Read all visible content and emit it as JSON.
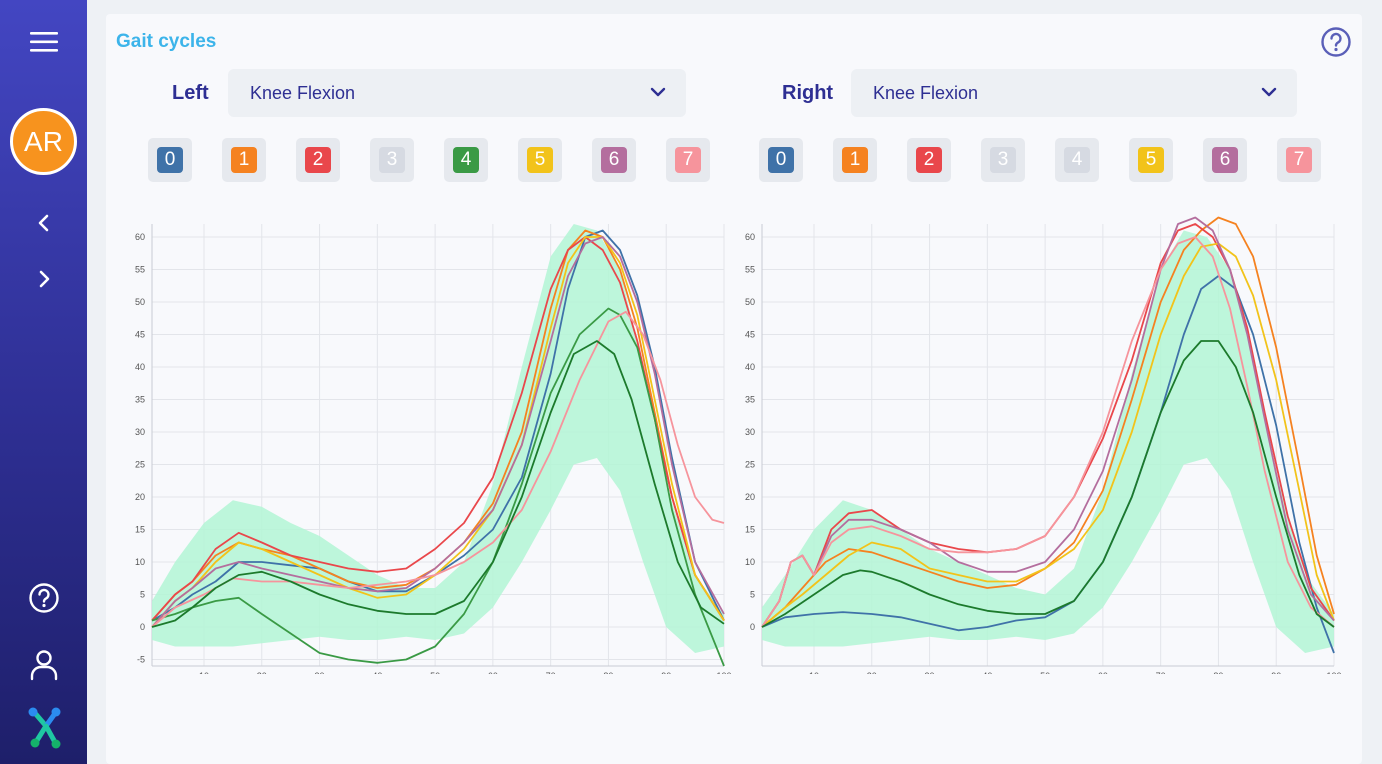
{
  "sidebar": {
    "menu_icon": "hamburger-menu-icon",
    "avatar_initials": "AR",
    "avatar_color": "#f7931e",
    "prev_icon": "chevron-left-icon",
    "next_icon": "chevron-right-icon",
    "help_icon": "help-circle-icon",
    "user_icon": "user-icon",
    "logo_icon": "app-logo-icon"
  },
  "main": {
    "title": "Gait cycles",
    "help_icon": "help-circle-icon",
    "left": {
      "label": "Left",
      "selected_metric": "Knee Flexion",
      "cycles": [
        {
          "label": "0",
          "color": "#3f72a8",
          "active": true
        },
        {
          "label": "1",
          "color": "#f58220",
          "active": true
        },
        {
          "label": "2",
          "color": "#e9474b",
          "active": true
        },
        {
          "label": "3",
          "color": "#d6dae2",
          "active": false
        },
        {
          "label": "4",
          "color": "#3a9a45",
          "active": true
        },
        {
          "label": "5",
          "color": "#f2c31a",
          "active": true
        },
        {
          "label": "6",
          "color": "#b46e9e",
          "active": true
        },
        {
          "label": "7",
          "color": "#f6949c",
          "active": true
        }
      ]
    },
    "right": {
      "label": "Right",
      "selected_metric": "Knee Flexion",
      "cycles": [
        {
          "label": "0",
          "color": "#3f72a8",
          "active": true
        },
        {
          "label": "1",
          "color": "#f58220",
          "active": true
        },
        {
          "label": "2",
          "color": "#e9474b",
          "active": true
        },
        {
          "label": "3",
          "color": "#d6dae2",
          "active": false
        },
        {
          "label": "4",
          "color": "#d6dae2",
          "active": false
        },
        {
          "label": "5",
          "color": "#f2c31a",
          "active": true
        },
        {
          "label": "6",
          "color": "#b46e9e",
          "active": true
        },
        {
          "label": "7",
          "color": "#f6949c",
          "active": true
        }
      ]
    }
  },
  "chart_data": [
    {
      "type": "line",
      "xlim": [
        1,
        100
      ],
      "ylim": [
        -6,
        62
      ],
      "xticks": [
        10,
        20,
        30,
        40,
        50,
        60,
        70,
        80,
        90,
        100
      ],
      "yticks": [
        -5,
        0,
        5,
        10,
        15,
        20,
        25,
        30,
        35,
        40,
        45,
        50,
        55,
        60
      ],
      "grid": true,
      "band": {
        "color": "#b3f6d5",
        "x": [
          1,
          5,
          10,
          15,
          20,
          25,
          30,
          35,
          40,
          45,
          50,
          55,
          60,
          65,
          70,
          74,
          78,
          82,
          86,
          90,
          95,
          100
        ],
        "upper": [
          4,
          10,
          16,
          19.5,
          18.5,
          16,
          14,
          11,
          8,
          6,
          6,
          10,
          22,
          40,
          57,
          62,
          61,
          55,
          40,
          22,
          8,
          2
        ],
        "lower": [
          -2,
          -3,
          -3,
          -3,
          -2.5,
          -2,
          -1.5,
          -2,
          -2,
          -1.5,
          -2,
          -1,
          3,
          10,
          18,
          25,
          26,
          21,
          10,
          0,
          -4,
          -3
        ]
      },
      "series": [
        {
          "color": "#3f72a8",
          "x": [
            1,
            5,
            8,
            12,
            16,
            20,
            25,
            30,
            35,
            40,
            45,
            50,
            55,
            60,
            65,
            70,
            73,
            76,
            79,
            82,
            85,
            88,
            91,
            95,
            100
          ],
          "y": [
            1,
            3,
            5,
            7,
            10,
            10,
            9.5,
            9,
            7,
            5.5,
            5.5,
            8,
            11,
            15,
            23,
            39,
            52,
            60,
            61,
            58,
            51,
            40,
            26,
            10,
            1
          ]
        },
        {
          "color": "#f58220",
          "x": [
            1,
            5,
            8,
            12,
            16,
            20,
            25,
            30,
            35,
            40,
            45,
            50,
            55,
            60,
            65,
            70,
            73,
            76,
            79,
            82,
            85,
            88,
            91,
            95,
            100
          ],
          "y": [
            1,
            5,
            7,
            11,
            13,
            12,
            11,
            9,
            7,
            6,
            6.5,
            9,
            13,
            19,
            30,
            49,
            58,
            61,
            60,
            55,
            46,
            33,
            20,
            8,
            1
          ]
        },
        {
          "color": "#e9474b",
          "x": [
            1,
            5,
            8,
            12,
            16,
            20,
            25,
            30,
            35,
            40,
            45,
            50,
            55,
            60,
            65,
            70,
            73,
            76,
            79,
            82,
            85,
            88,
            91,
            95,
            100
          ],
          "y": [
            1,
            5,
            7,
            12,
            14.5,
            13,
            11,
            10,
            9,
            8.5,
            9,
            12,
            16,
            23,
            36,
            52,
            58,
            60,
            58,
            53,
            44,
            32,
            20,
            8,
            1
          ]
        },
        {
          "color": "#3a9a45",
          "x": [
            1,
            5,
            8,
            12,
            16,
            20,
            25,
            30,
            35,
            40,
            45,
            50,
            55,
            60,
            65,
            70,
            75,
            80,
            82,
            85,
            88,
            91,
            95,
            100
          ],
          "y": [
            1,
            2,
            3,
            4,
            4.5,
            2,
            -1,
            -4,
            -5,
            -5.5,
            -5,
            -3,
            2,
            10,
            22,
            36,
            45,
            49,
            48,
            43,
            32,
            18,
            5,
            -6
          ]
        },
        {
          "color": "#f2c31a",
          "x": [
            1,
            5,
            8,
            12,
            16,
            20,
            25,
            30,
            35,
            40,
            45,
            50,
            55,
            60,
            65,
            70,
            73,
            76,
            79,
            82,
            85,
            88,
            91,
            95,
            100
          ],
          "y": [
            0,
            4,
            6,
            10,
            13,
            12,
            10,
            8,
            6,
            4.5,
            5,
            8,
            12,
            18,
            28,
            46,
            56,
            60,
            60,
            56,
            48,
            35,
            22,
            8,
            1
          ]
        },
        {
          "color": "#b46e9e",
          "x": [
            1,
            5,
            8,
            12,
            16,
            20,
            25,
            30,
            35,
            40,
            45,
            50,
            55,
            60,
            65,
            70,
            73,
            76,
            79,
            82,
            85,
            88,
            91,
            95,
            100
          ],
          "y": [
            0,
            4,
            6,
            9,
            10,
            9,
            8,
            7,
            6,
            5.5,
            6,
            9,
            13,
            18,
            28,
            44,
            54,
            59,
            60,
            57,
            50,
            39,
            25,
            10,
            2
          ]
        },
        {
          "color": "#f6949c",
          "x": [
            1,
            5,
            10,
            15,
            20,
            25,
            30,
            35,
            40,
            45,
            50,
            55,
            60,
            65,
            70,
            75,
            80,
            83,
            86,
            89,
            92,
            95,
            98,
            100
          ],
          "y": [
            0,
            3,
            5,
            7.5,
            7,
            7,
            6.5,
            6,
            6.5,
            7,
            8,
            10,
            13,
            18,
            27,
            38,
            47,
            48.5,
            45,
            38,
            28,
            20,
            16.5,
            16
          ]
        },
        {
          "color": "#1c7a2c",
          "x": [
            1,
            5,
            8,
            12,
            16,
            20,
            25,
            30,
            35,
            40,
            45,
            50,
            55,
            60,
            65,
            70,
            74,
            78,
            81,
            84,
            88,
            92,
            96,
            100
          ],
          "y": [
            0,
            1,
            3,
            6,
            8,
            8.5,
            7,
            5,
            3.5,
            2.5,
            2,
            2,
            4,
            10,
            20,
            33,
            42,
            44,
            42,
            35,
            22,
            10,
            3,
            0.5
          ]
        }
      ]
    },
    {
      "type": "line",
      "xlim": [
        1,
        100
      ],
      "ylim": [
        -6,
        62
      ],
      "xticks": [
        10,
        20,
        30,
        40,
        50,
        60,
        70,
        80,
        90,
        100
      ],
      "yticks": [
        0,
        5,
        10,
        15,
        20,
        25,
        30,
        35,
        40,
        45,
        50,
        55,
        60
      ],
      "grid": true,
      "band": {
        "color": "#b3f6d5",
        "x": [
          1,
          5,
          10,
          15,
          20,
          25,
          30,
          35,
          40,
          45,
          50,
          55,
          60,
          65,
          70,
          74,
          78,
          82,
          86,
          90,
          95,
          100
        ],
        "upper": [
          3,
          8,
          15,
          19.5,
          18,
          15,
          12,
          10,
          8,
          6,
          5,
          9,
          21,
          39,
          55,
          61,
          60,
          55,
          42,
          24,
          8,
          2
        ],
        "lower": [
          -2,
          -3,
          -3,
          -3,
          -2.5,
          -2,
          -1.5,
          -2,
          -2,
          -1.5,
          -2,
          -1,
          3,
          10,
          18,
          25,
          26,
          21,
          10,
          0,
          -4,
          -3
        ]
      },
      "series": [
        {
          "color": "#3f72a8",
          "x": [
            1,
            5,
            10,
            15,
            20,
            25,
            30,
            35,
            40,
            45,
            50,
            55,
            60,
            65,
            70,
            74,
            77,
            80,
            83,
            86,
            90,
            94,
            97,
            100
          ],
          "y": [
            0,
            1.5,
            2,
            2.3,
            2,
            1.5,
            0.5,
            -0.5,
            0,
            1,
            1.5,
            4,
            10,
            20,
            33,
            45,
            52,
            54,
            52,
            45,
            31,
            13,
            3,
            -4
          ]
        },
        {
          "color": "#f58220",
          "x": [
            1,
            5,
            8,
            12,
            16,
            20,
            25,
            30,
            35,
            40,
            45,
            50,
            55,
            60,
            65,
            70,
            74,
            77,
            80,
            83,
            86,
            90,
            94,
            97,
            100
          ],
          "y": [
            0,
            3,
            6,
            10,
            12,
            11.5,
            10,
            8.5,
            7,
            6,
            6.5,
            9,
            13,
            21,
            35,
            50,
            58,
            61,
            63,
            62,
            57,
            43,
            25,
            11,
            2
          ]
        },
        {
          "color": "#e9474b",
          "x": [
            1,
            4,
            6,
            8,
            10,
            13,
            16,
            20,
            25,
            30,
            35,
            40,
            45,
            50,
            55,
            60,
            65,
            70,
            73,
            76,
            79,
            82,
            85,
            88,
            92,
            96,
            100
          ],
          "y": [
            0,
            4,
            10,
            11,
            8,
            15,
            17.5,
            18,
            15,
            13,
            12,
            11.5,
            12,
            14,
            20,
            29,
            41,
            56,
            61,
            62,
            60,
            55,
            46,
            33,
            17,
            6,
            1
          ]
        },
        {
          "color": "#f2c31a",
          "x": [
            1,
            5,
            8,
            12,
            16,
            20,
            25,
            30,
            35,
            40,
            45,
            50,
            55,
            60,
            65,
            70,
            74,
            77,
            80,
            83,
            86,
            90,
            94,
            97,
            100
          ],
          "y": [
            0,
            3,
            5,
            8,
            11,
            13,
            12,
            9,
            8,
            7,
            7,
            9,
            12,
            18,
            30,
            45,
            54,
            58.5,
            59,
            57,
            51,
            38,
            21,
            8,
            1
          ]
        },
        {
          "color": "#b46e9e",
          "x": [
            1,
            4,
            6,
            8,
            10,
            13,
            16,
            20,
            25,
            30,
            35,
            40,
            45,
            50,
            55,
            60,
            65,
            70,
            73,
            76,
            79,
            82,
            85,
            88,
            92,
            96,
            100
          ],
          "y": [
            0,
            4,
            10,
            11,
            8,
            14,
            16.5,
            16.5,
            15,
            13,
            10,
            8.5,
            8.5,
            10,
            15,
            24,
            38,
            55,
            62,
            63,
            61,
            55,
            45,
            32,
            15,
            5,
            1
          ]
        },
        {
          "color": "#f6949c",
          "x": [
            1,
            4,
            6,
            8,
            10,
            13,
            16,
            20,
            25,
            30,
            35,
            40,
            45,
            50,
            55,
            60,
            65,
            70,
            73,
            76,
            79,
            82,
            85,
            88,
            92,
            96,
            100
          ],
          "y": [
            0,
            4,
            10,
            11,
            8,
            13,
            15,
            15.5,
            14,
            12,
            11.5,
            11.5,
            12,
            14,
            20,
            30,
            44,
            55,
            59,
            60,
            57,
            49,
            37,
            24,
            10,
            3,
            0
          ]
        },
        {
          "color": "#1c7a2c",
          "x": [
            1,
            5,
            10,
            15,
            18,
            20,
            25,
            30,
            35,
            40,
            45,
            50,
            55,
            60,
            65,
            70,
            74,
            77,
            80,
            83,
            86,
            90,
            94,
            97,
            100
          ],
          "y": [
            0,
            2,
            5,
            8,
            8.7,
            8.5,
            7,
            5,
            3.5,
            2.5,
            2,
            2,
            4,
            10,
            20,
            33,
            41,
            44,
            44,
            40,
            33,
            20,
            8,
            2,
            0
          ]
        }
      ]
    }
  ]
}
